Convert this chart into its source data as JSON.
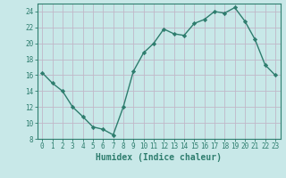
{
  "xlabel": "Humidex (Indice chaleur)",
  "x": [
    0,
    1,
    2,
    3,
    4,
    5,
    6,
    7,
    8,
    9,
    10,
    11,
    12,
    13,
    14,
    15,
    16,
    17,
    18,
    19,
    20,
    21,
    22,
    23
  ],
  "y": [
    16.3,
    15.0,
    14.0,
    12.0,
    10.8,
    9.5,
    9.2,
    8.5,
    12.0,
    16.5,
    18.8,
    20.0,
    21.8,
    21.2,
    21.0,
    22.5,
    23.0,
    24.0,
    23.8,
    24.5,
    22.8,
    20.5,
    17.3,
    16.0
  ],
  "line_color": "#2e7d6e",
  "marker": "D",
  "marker_size": 2.2,
  "bg_color": "#c8e8e8",
  "grid_color": "#c0b8c8",
  "axis_color": "#2e7d6e",
  "ylim": [
    8,
    25
  ],
  "xlim": [
    -0.5,
    23.5
  ],
  "yticks": [
    8,
    10,
    12,
    14,
    16,
    18,
    20,
    22,
    24
  ],
  "xticks": [
    0,
    1,
    2,
    3,
    4,
    5,
    6,
    7,
    8,
    9,
    10,
    11,
    12,
    13,
    14,
    15,
    16,
    17,
    18,
    19,
    20,
    21,
    22,
    23
  ],
  "tick_fontsize": 5.5,
  "xlabel_fontsize": 7.0,
  "line_width": 1.0
}
